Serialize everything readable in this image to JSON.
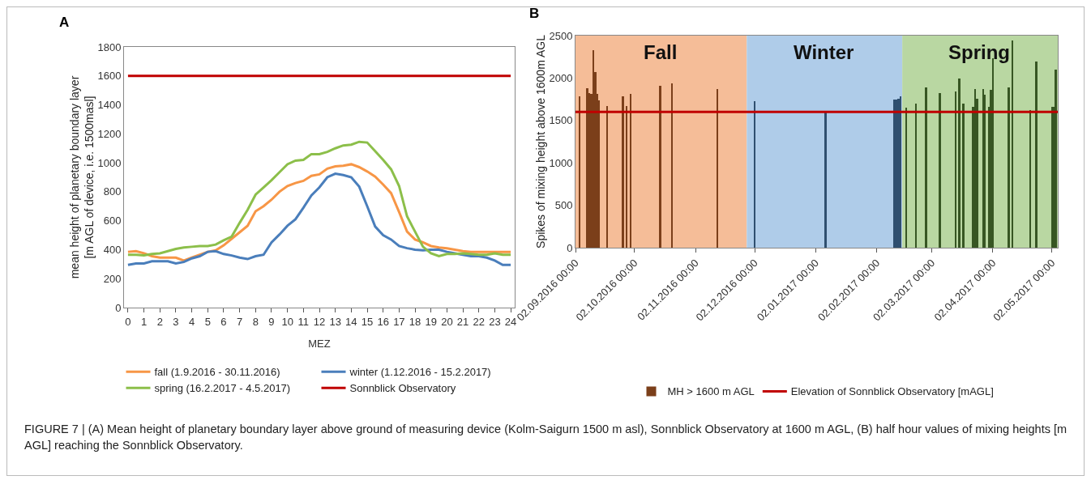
{
  "chart_data": [
    {
      "type": "line",
      "ylabel": "mean height of planetary boundary layer\n[m AGL of device, i.e. 1500masl]",
      "xlabel": "MEZ",
      "x": [
        0,
        0.5,
        1,
        1.5,
        2,
        2.5,
        3,
        3.5,
        4,
        4.5,
        5,
        5.5,
        6,
        6.5,
        7,
        7.5,
        8,
        8.5,
        9,
        9.5,
        10,
        10.5,
        11,
        11.5,
        12,
        12.5,
        13,
        13.5,
        14,
        14.5,
        15,
        15.5,
        16,
        16.5,
        17,
        17.5,
        18,
        18.5,
        19,
        19.5,
        20,
        20.5,
        21,
        21.5,
        22,
        22.5,
        23,
        23.5,
        24
      ],
      "series": [
        {
          "name": "fall (1.9.2016 - 30.11.2016)",
          "color": "#f79646",
          "values": [
            385,
            390,
            375,
            355,
            345,
            345,
            345,
            325,
            345,
            365,
            385,
            395,
            430,
            475,
            520,
            565,
            665,
            700,
            745,
            800,
            840,
            860,
            875,
            910,
            920,
            960,
            975,
            980,
            990,
            970,
            940,
            905,
            850,
            790,
            660,
            525,
            470,
            450,
            425,
            415,
            410,
            400,
            390,
            385,
            385,
            385,
            385,
            385,
            385
          ]
        },
        {
          "name": "winter (1.12.2016 - 15.2.2017)",
          "color": "#4a7ebb",
          "values": [
            295,
            305,
            305,
            320,
            320,
            320,
            305,
            315,
            340,
            355,
            385,
            390,
            370,
            360,
            345,
            335,
            355,
            365,
            450,
            505,
            565,
            610,
            690,
            775,
            830,
            900,
            925,
            915,
            900,
            835,
            700,
            560,
            500,
            470,
            425,
            410,
            400,
            395,
            400,
            400,
            385,
            375,
            365,
            355,
            355,
            345,
            325,
            295,
            295
          ]
        },
        {
          "name": "spring (16.2.2017 - 4.5.2017)",
          "color": "#8cbf4a",
          "values": [
            365,
            365,
            360,
            370,
            375,
            390,
            405,
            415,
            420,
            425,
            425,
            435,
            465,
            490,
            585,
            675,
            780,
            830,
            880,
            935,
            990,
            1015,
            1020,
            1060,
            1060,
            1075,
            1100,
            1120,
            1125,
            1145,
            1140,
            1080,
            1020,
            955,
            840,
            630,
            525,
            420,
            375,
            355,
            370,
            370,
            375,
            370,
            365,
            365,
            375,
            365,
            365
          ]
        },
        {
          "name": "Sonnblick Observatory",
          "color": "#c00000",
          "x": [
            0,
            24
          ],
          "values": [
            1600,
            1600
          ]
        }
      ],
      "xlim": [
        -0.25,
        24.25
      ],
      "xticks": [
        0,
        1,
        2,
        3,
        4,
        5,
        6,
        7,
        8,
        9,
        10,
        11,
        12,
        13,
        14,
        15,
        16,
        17,
        18,
        19,
        20,
        21,
        22,
        23,
        24
      ],
      "ylim": [
        0,
        1800
      ],
      "yticks": [
        0,
        200,
        400,
        600,
        800,
        1000,
        1200,
        1400,
        1600,
        1800
      ],
      "grid": false,
      "legend": "bottom",
      "marker": "none",
      "line_style": "solid",
      "annotations": [
        "A",
        "FIGURE 7 | (A) Mean height of planetary boundary layer above ground of measuring device (Kolm-Saigurn 1500 m asl), Sonnblick Observatory at 1600 m AGL, (B) half hour values of mixing heights [m AGL] reaching the Sonnblick Observatory."
      ]
    },
    {
      "type": "bar",
      "ylabel": "Spikes of mixing height above 1600m AGL",
      "x": [
        "2016-09-04",
        "2016-09-08",
        "2016-09-09",
        "2016-09-10",
        "2016-09-11",
        "2016-09-12",
        "2016-09-13",
        "2016-09-14",
        "2016-09-18",
        "2016-09-26",
        "2016-09-28",
        "2016-09-30",
        "2016-10-15",
        "2016-10-21",
        "2016-11-13",
        "2016-12-02",
        "2017-01-07",
        "2017-02-11",
        "2017-02-12",
        "2017-02-13",
        "2017-02-14",
        "2017-02-17",
        "2017-02-22",
        "2017-02-27",
        "2017-03-06",
        "2017-03-14",
        "2017-03-16",
        "2017-03-18",
        "2017-03-23",
        "2017-03-24",
        "2017-03-25",
        "2017-03-28",
        "2017-03-29",
        "2017-03-31",
        "2017-04-01",
        "2017-04-02",
        "2017-04-10",
        "2017-04-12",
        "2017-04-21",
        "2017-04-24",
        "2017-05-02",
        "2017-05-03",
        "2017-05-04"
      ],
      "series": [
        {
          "name": "MH > 1600 m AGL",
          "type": "bar",
          "values": [
            1780,
            1880,
            1820,
            1810,
            2330,
            2070,
            1810,
            1740,
            1670,
            1780,
            1670,
            1810,
            1910,
            1940,
            1870,
            1730,
            1600,
            1750,
            1750,
            1760,
            1780,
            1650,
            1700,
            1890,
            1820,
            1840,
            1990,
            1700,
            1660,
            1870,
            1760,
            1870,
            1800,
            1660,
            1860,
            2230,
            1890,
            2440,
            1620,
            2190,
            1660,
            1660,
            2100
          ],
          "colors": [
            "#7b3f1a",
            "#7b3f1a",
            "#7b3f1a",
            "#7b3f1a",
            "#7b3f1a",
            "#7b3f1a",
            "#7b3f1a",
            "#7b3f1a",
            "#7b3f1a",
            "#7b3f1a",
            "#7b3f1a",
            "#7b3f1a",
            "#7b3f1a",
            "#7b3f1a",
            "#7b3f1a",
            "#2f4f6f",
            "#2f4f6f",
            "#2f4f6f",
            "#2f4f6f",
            "#2f4f6f",
            "#2f4f6f",
            "#375623",
            "#375623",
            "#375623",
            "#375623",
            "#375623",
            "#375623",
            "#375623",
            "#375623",
            "#375623",
            "#375623",
            "#375623",
            "#375623",
            "#375623",
            "#375623",
            "#375623",
            "#375623",
            "#375623",
            "#375623",
            "#375623",
            "#375623",
            "#375623",
            "#375623"
          ]
        },
        {
          "name": "Elevation of Sonnblick Observatory [mAGL]",
          "type": "line",
          "color": "#c00000",
          "x": [
            "2016-09-02",
            "2017-05-05"
          ],
          "values": [
            1600,
            1600
          ]
        }
      ],
      "bands": [
        {
          "axis": "x",
          "from": "2016-09-02",
          "to": "2016-11-28",
          "label": "Fall",
          "color": "#f5bd98"
        },
        {
          "axis": "x",
          "from": "2016-11-28",
          "to": "2017-02-15",
          "label": "Winter",
          "color": "#afcce9"
        },
        {
          "axis": "x",
          "from": "2017-02-15",
          "to": "2017-05-05",
          "label": "Spring",
          "color": "#b9d7a2"
        }
      ],
      "xlim": [
        "2016-09-02",
        "2017-05-05"
      ],
      "xticks": [
        {
          "value": "2016-09-02",
          "label": "02.09.2016 00:00"
        },
        {
          "value": "2016-10-02",
          "label": "02.10.2016 00:00"
        },
        {
          "value": "2016-11-02",
          "label": "02.11.2016 00:00"
        },
        {
          "value": "2016-12-02",
          "label": "02.12.2016 00:00"
        },
        {
          "value": "2017-01-02",
          "label": "02.01.2017 00:00"
        },
        {
          "value": "2017-02-02",
          "label": "02.02.2017 00:00"
        },
        {
          "value": "2017-03-02",
          "label": "02.03.2017 00:00"
        },
        {
          "value": "2017-04-02",
          "label": "02.04.2017 00:00"
        },
        {
          "value": "2017-05-02",
          "label": "02.05.2017 00:00"
        }
      ],
      "ylim": [
        0,
        2500
      ],
      "yticks": [
        0,
        500,
        1000,
        1500,
        2000,
        2500
      ],
      "grid": false,
      "legend": "bottom",
      "annotations": [
        "B"
      ]
    }
  ]
}
